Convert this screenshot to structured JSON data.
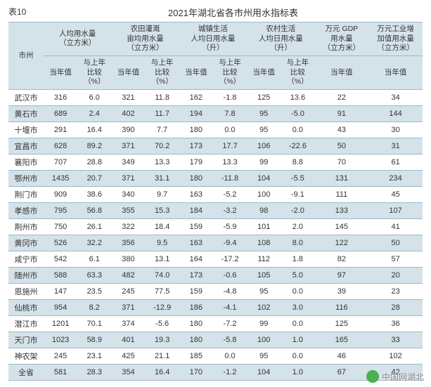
{
  "table_number": "表10",
  "title": "2021年湖北省各市州用水指标表",
  "col_region": "市州",
  "groups": [
    {
      "label": "人均用水量\n（立方米）",
      "sub": [
        "当年值",
        "与上年\n比较\n（%）"
      ]
    },
    {
      "label": "农田灌溉\n亩均用水量\n（立方米）",
      "sub": [
        "当年值",
        "与上年\n比较\n（%）"
      ]
    },
    {
      "label": "城镇生活\n人均日用水量\n（升）",
      "sub": [
        "当年值",
        "与上年\n比较\n（%）"
      ]
    },
    {
      "label": "农村生活\n人均日用水量\n（升）",
      "sub": [
        "当年值",
        "与上年\n比较\n（%）"
      ]
    },
    {
      "label": "万元 GDP\n用水量\n（立方米）",
      "sub": [
        "当年值"
      ]
    },
    {
      "label": "万元工业增\n加值用水量\n（立方米）",
      "sub": [
        "当年值"
      ]
    }
  ],
  "rows": [
    [
      "武汉市",
      "316",
      "6.0",
      "321",
      "11.8",
      "162",
      "-1.8",
      "125",
      "13.6",
      "22",
      "34"
    ],
    [
      "黄石市",
      "689",
      "2.4",
      "402",
      "11.7",
      "194",
      "7.8",
      "95",
      "-5.0",
      "91",
      "144"
    ],
    [
      "十堰市",
      "291",
      "16.4",
      "390",
      "7.7",
      "180",
      "0.0",
      "95",
      "0.0",
      "43",
      "30"
    ],
    [
      "宜昌市",
      "628",
      "89.2",
      "371",
      "70.2",
      "173",
      "17.7",
      "106",
      "-22.6",
      "50",
      "31"
    ],
    [
      "襄阳市",
      "707",
      "28.8",
      "349",
      "13.3",
      "179",
      "13.3",
      "99",
      "8.8",
      "70",
      "61"
    ],
    [
      "鄂州市",
      "1435",
      "20.7",
      "371",
      "31.1",
      "180",
      "-11.8",
      "104",
      "-5.5",
      "131",
      "234"
    ],
    [
      "荆门市",
      "909",
      "38.6",
      "340",
      "9.7",
      "163",
      "-5.2",
      "100",
      "-9.1",
      "111",
      "45"
    ],
    [
      "孝感市",
      "795",
      "56.8",
      "355",
      "15.3",
      "184",
      "-3.2",
      "98",
      "-2.0",
      "133",
      "107"
    ],
    [
      "荆州市",
      "750",
      "26.1",
      "322",
      "18.4",
      "159",
      "-5.9",
      "101",
      "2.0",
      "145",
      "41"
    ],
    [
      "黄冈市",
      "526",
      "32.2",
      "356",
      "9.5",
      "163",
      "-9.4",
      "108",
      "8.0",
      "122",
      "50"
    ],
    [
      "咸宁市",
      "542",
      "6.1",
      "380",
      "13.1",
      "164",
      "-17.2",
      "112",
      "1.8",
      "82",
      "57"
    ],
    [
      "随州市",
      "588",
      "63.3",
      "482",
      "74.0",
      "173",
      "-0.6",
      "105",
      "5.0",
      "97",
      "20"
    ],
    [
      "恩施州",
      "147",
      "23.5",
      "245",
      "77.5",
      "159",
      "-4.8",
      "95",
      "0.0",
      "39",
      "23"
    ],
    [
      "仙桃市",
      "954",
      "8.2",
      "371",
      "-12.9",
      "186",
      "-4.1",
      "102",
      "3.0",
      "116",
      "28"
    ],
    [
      "潜江市",
      "1201",
      "70.1",
      "374",
      "-5.6",
      "180",
      "-7.2",
      "99",
      "0.0",
      "125",
      "36"
    ],
    [
      "天门市",
      "1023",
      "58.9",
      "401",
      "19.3",
      "180",
      "-5.8",
      "100",
      "1.0",
      "165",
      "33"
    ],
    [
      "神农架",
      "245",
      "23.1",
      "425",
      "21.1",
      "185",
      "0.0",
      "95",
      "0.0",
      "46",
      "102"
    ],
    [
      "全省",
      "581",
      "28.3",
      "354",
      "16.4",
      "170",
      "-1.2",
      "104",
      "1.0",
      "67",
      "42"
    ]
  ],
  "watermark": "中国网湖北",
  "colors": {
    "header_bg": "#d4e2ea",
    "row_alt_bg": "#d4e2ea",
    "row_bg": "#ffffff",
    "border": "#9fb8c8",
    "text": "#333333"
  }
}
